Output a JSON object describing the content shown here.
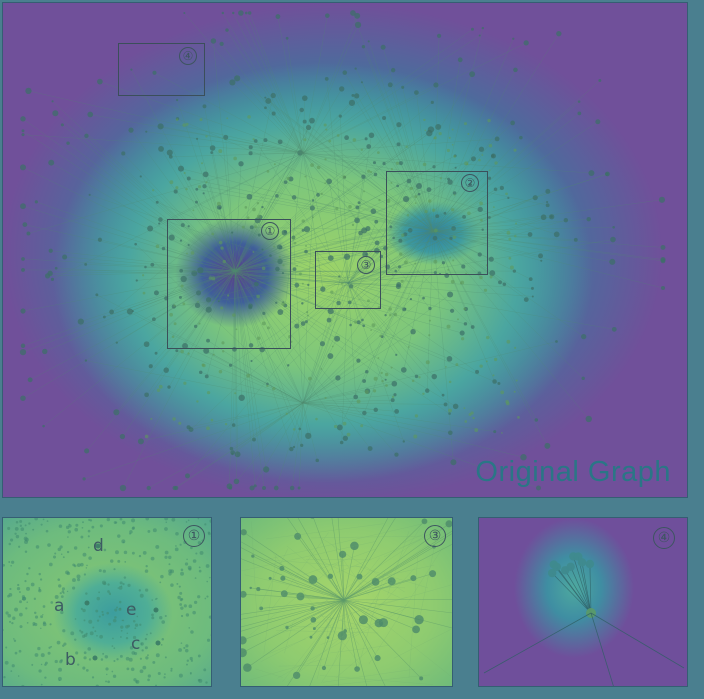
{
  "main": {
    "title": "Original Graph",
    "regions": [
      {
        "id": "region-1",
        "label": "①"
      },
      {
        "id": "region-2",
        "label": "②"
      },
      {
        "id": "region-3",
        "label": "③"
      },
      {
        "id": "region-4",
        "label": "④"
      }
    ]
  },
  "zooms": [
    {
      "label": "①",
      "nodes": [
        "a",
        "b",
        "c",
        "d",
        "e"
      ]
    },
    {
      "label": "③"
    },
    {
      "label": "④"
    }
  ],
  "colors": {
    "low": "#70509a",
    "mid": "#3d9aa0",
    "high": "#a6d66a",
    "edge": "#4f8a6e",
    "border": "#355e73"
  }
}
